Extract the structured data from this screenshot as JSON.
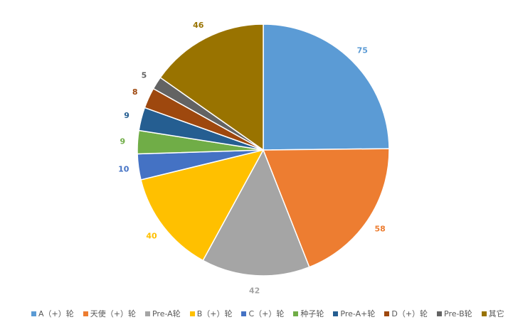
{
  "chart_data": {
    "type": "pie",
    "start_angle": "top, clockwise",
    "legend_position": "bottom",
    "slices": [
      {
        "label": "A（+）轮",
        "value": 75,
        "color": "#5B9BD5"
      },
      {
        "label": "天使（+）轮",
        "value": 58,
        "color": "#ED7D31"
      },
      {
        "label": "Pre-A轮",
        "value": 42,
        "color": "#A5A5A5"
      },
      {
        "label": "B（+）轮",
        "value": 40,
        "color": "#FFC000"
      },
      {
        "label": "C（+）轮",
        "value": 10,
        "color": "#4472C4"
      },
      {
        "label": "种子轮",
        "value": 9,
        "color": "#70AD47"
      },
      {
        "label": "Pre-A+轮",
        "value": 9,
        "color": "#255E91"
      },
      {
        "label": "D（+）轮",
        "value": 8,
        "color": "#9E480E"
      },
      {
        "label": "Pre-B轮",
        "value": 5,
        "color": "#636363"
      },
      {
        "label": "其它",
        "value": 46,
        "color": "#997300"
      }
    ]
  }
}
